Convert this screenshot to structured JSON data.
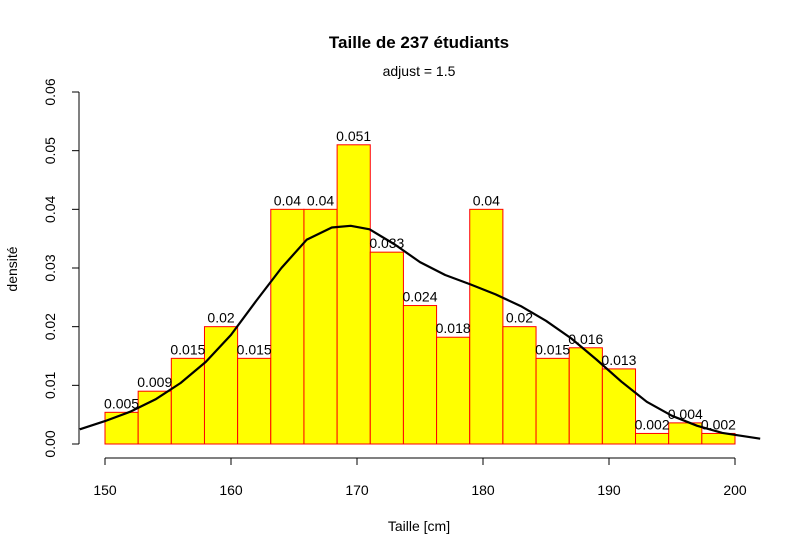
{
  "chart_data": {
    "type": "bar",
    "title": "Taille de 237  étudiants",
    "subtitle": "adjust =  1.5",
    "xlabel": "Taille [cm]",
    "ylabel": "densité",
    "xlim": [
      148,
      202
    ],
    "ylim": [
      0,
      0.06
    ],
    "x_ticks": [
      150,
      160,
      170,
      180,
      190,
      200
    ],
    "y_ticks": [
      0.0,
      0.01,
      0.02,
      0.03,
      0.04,
      0.05,
      0.06
    ],
    "y_tick_labels": [
      "0.00",
      "0.01",
      "0.02",
      "0.03",
      "0.04",
      "0.05",
      "0.06"
    ],
    "bin_width": 2.6316,
    "bins": [
      {
        "start": 150.0,
        "value": 0.0054,
        "label": "0.005"
      },
      {
        "start": 152.6316,
        "value": 0.009,
        "label": "0.009"
      },
      {
        "start": 155.2632,
        "value": 0.0146,
        "label": "0.015"
      },
      {
        "start": 157.8947,
        "value": 0.02,
        "label": "0.02"
      },
      {
        "start": 160.5263,
        "value": 0.0146,
        "label": "0.015"
      },
      {
        "start": 163.1579,
        "value": 0.04,
        "label": "0.04"
      },
      {
        "start": 165.7895,
        "value": 0.04,
        "label": "0.04"
      },
      {
        "start": 168.4211,
        "value": 0.051,
        "label": "0.051"
      },
      {
        "start": 171.0526,
        "value": 0.0327,
        "label": "0.033"
      },
      {
        "start": 173.6842,
        "value": 0.0236,
        "label": "0.024"
      },
      {
        "start": 176.3158,
        "value": 0.0182,
        "label": "0.018"
      },
      {
        "start": 178.9474,
        "value": 0.04,
        "label": "0.04"
      },
      {
        "start": 181.5789,
        "value": 0.02,
        "label": "0.02"
      },
      {
        "start": 184.2105,
        "value": 0.0146,
        "label": "0.015"
      },
      {
        "start": 186.8421,
        "value": 0.0164,
        "label": "0.016"
      },
      {
        "start": 189.4737,
        "value": 0.0128,
        "label": "0.013"
      },
      {
        "start": 192.1053,
        "value": 0.0018,
        "label": "0.002"
      },
      {
        "start": 194.7368,
        "value": 0.0036,
        "label": "0.004"
      },
      {
        "start": 197.3684,
        "value": 0.0018,
        "label": "0.002"
      }
    ],
    "density_curve": {
      "x": [
        148,
        150,
        152,
        154,
        156,
        158,
        160,
        162,
        164,
        166,
        168,
        169.5,
        171,
        173,
        175,
        177,
        179,
        181,
        183,
        185,
        187,
        189,
        191,
        193,
        195,
        197,
        199,
        202
      ],
      "y": [
        0.0025,
        0.0039,
        0.0055,
        0.0076,
        0.0104,
        0.014,
        0.0186,
        0.0244,
        0.03,
        0.0348,
        0.0369,
        0.0372,
        0.0366,
        0.034,
        0.031,
        0.0288,
        0.0272,
        0.0255,
        0.0235,
        0.021,
        0.018,
        0.0144,
        0.0106,
        0.0072,
        0.0048,
        0.0031,
        0.0019,
        0.0009
      ]
    },
    "grid": false,
    "colors": {
      "bar_fill": "#ffff00",
      "bar_border": "#ff0000",
      "curve": "#000000"
    }
  }
}
